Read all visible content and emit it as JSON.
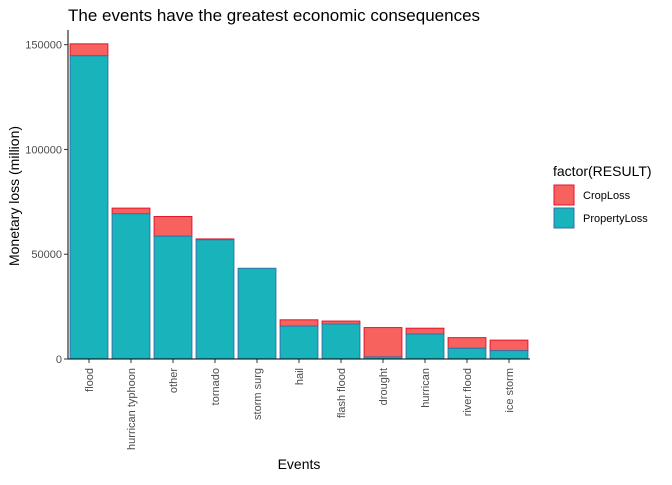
{
  "chart_data": {
    "type": "bar",
    "stacked": true,
    "title": "The events have the greatest economic consequences",
    "xlabel": "Events",
    "ylabel": "Monetary loss (million)",
    "categories": [
      "flood",
      "hurrican typhoon",
      "other",
      "tornado",
      "storm surg",
      "hail",
      "flash flood",
      "drought",
      "hurrican",
      "river flood",
      "ice storm"
    ],
    "series": [
      {
        "name": "PropertyLoss",
        "fill": "#19b3bb",
        "stroke": "#3472a8",
        "values": [
          144700,
          69300,
          58600,
          56900,
          43300,
          15700,
          16700,
          1000,
          11900,
          5100,
          4000
        ]
      },
      {
        "name": "CropLoss",
        "fill": "#f7625f",
        "stroke": "#e3162d",
        "values": [
          5700,
          2700,
          9400,
          400,
          0,
          3000,
          1400,
          14000,
          2800,
          5100,
          5000
        ]
      }
    ],
    "ylim": [
      0,
      157000
    ],
    "yticks": [
      0,
      50000,
      100000,
      150000
    ],
    "grid": false,
    "legend": {
      "title": "factor(RESULT)",
      "position": "right",
      "entries": [
        {
          "label": "CropLoss",
          "fill": "#f7625f",
          "stroke": "#e3162d"
        },
        {
          "label": "PropertyLoss",
          "fill": "#19b3bb",
          "stroke": "#3472a8"
        }
      ]
    }
  }
}
